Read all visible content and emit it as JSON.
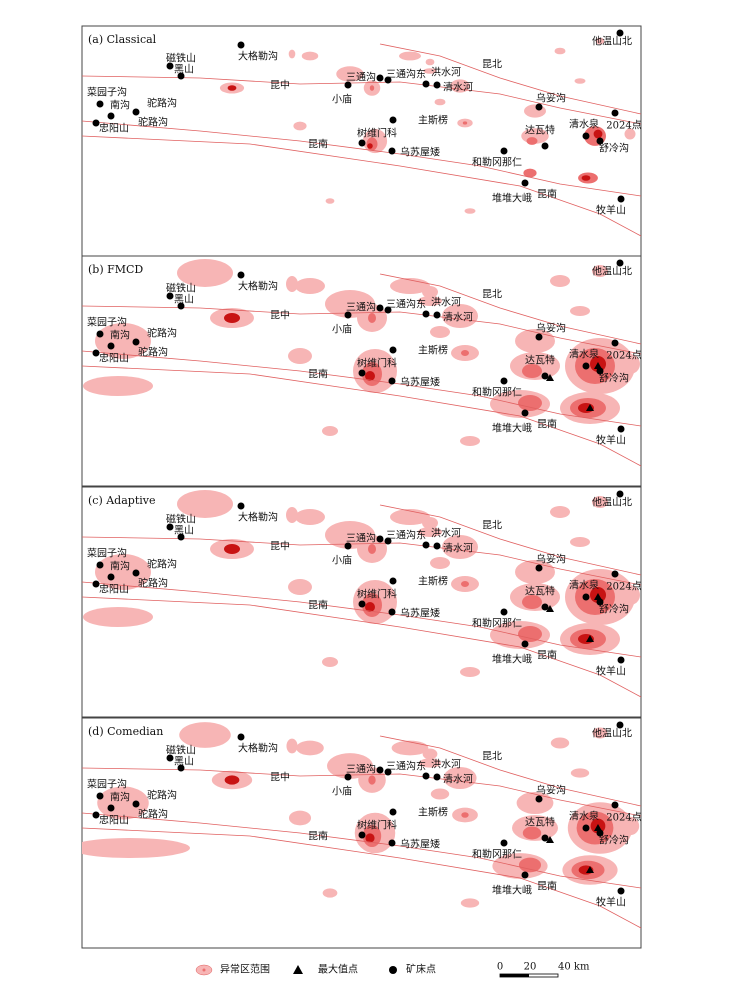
{
  "panels": [
    {
      "title": "(a) Classical"
    },
    {
      "title": "(b) FMCD"
    },
    {
      "title": "(c) Adaptive"
    },
    {
      "title": "(d) Comedian"
    }
  ],
  "places": [
    {
      "label": "他温山北"
    },
    {
      "label": "大格勒沟"
    },
    {
      "label": "磁铁山"
    },
    {
      "label": "黑山"
    },
    {
      "label": "昆北"
    },
    {
      "label": "三通沟"
    },
    {
      "label": "三通沟东"
    },
    {
      "label": "洪水河"
    },
    {
      "label": "清水河"
    },
    {
      "label": "小庙"
    },
    {
      "label": "昆中"
    },
    {
      "label": "菜园子沟"
    },
    {
      "label": "南沟"
    },
    {
      "label": "驼路沟"
    },
    {
      "label": "驼路沟"
    },
    {
      "label": "忠阳山"
    },
    {
      "label": "乌妥沟"
    },
    {
      "label": "主斯楞"
    },
    {
      "label": "清水泉"
    },
    {
      "label": "2024点"
    },
    {
      "label": "达瓦特"
    },
    {
      "label": "树维门科"
    },
    {
      "label": "乌苏屋矮"
    },
    {
      "label": "舒冷沟"
    },
    {
      "label": "和勒冈那仁"
    },
    {
      "label": "昆南"
    },
    {
      "label": "昆南"
    },
    {
      "label": "堆堆大峨"
    },
    {
      "label": "牧羊山"
    }
  ],
  "legend": [
    {
      "label": "异常区范围"
    },
    {
      "label": "最大值点"
    },
    {
      "label": "矿床点"
    }
  ],
  "scale": {
    "labels": [
      "0",
      "20",
      "40 km"
    ]
  }
}
